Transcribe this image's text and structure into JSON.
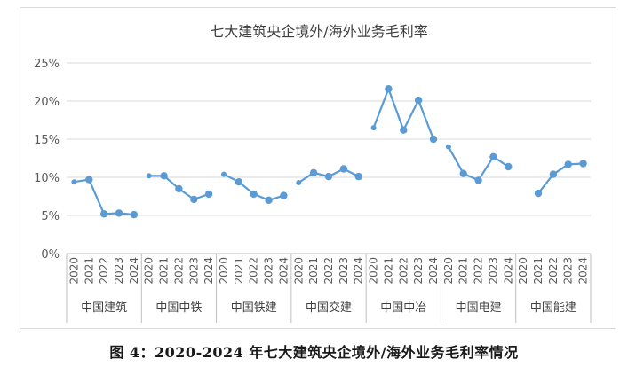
{
  "caption": "图 4：2020-2024 年七大建筑央企境外/海外业务毛利率情况",
  "chart_data": {
    "type": "line",
    "title": "七大建筑央企境外/海外业务毛利率",
    "xlabel": "",
    "ylabel": "",
    "ylim": [
      0,
      25
    ],
    "y_ticks": [
      "0%",
      "5%",
      "10%",
      "15%",
      "20%",
      "25%"
    ],
    "years": [
      "2020",
      "2021",
      "2022",
      "2023",
      "2024"
    ],
    "grid": true,
    "legend": "none",
    "line_color": "#5b9bd5",
    "groups": [
      {
        "name": "中国建筑",
        "values": [
          9.4,
          9.7,
          5.2,
          5.3,
          5.1
        ]
      },
      {
        "name": "中国中铁",
        "values": [
          10.2,
          10.2,
          8.5,
          7.1,
          7.8
        ]
      },
      {
        "name": "中国铁建",
        "values": [
          10.4,
          9.4,
          7.8,
          7.0,
          7.6
        ]
      },
      {
        "name": "中国交建",
        "values": [
          9.3,
          10.6,
          10.1,
          11.1,
          10.1
        ]
      },
      {
        "name": "中国中冶",
        "values": [
          16.5,
          21.6,
          16.2,
          20.1,
          15.0
        ]
      },
      {
        "name": "中国电建",
        "values": [
          14.0,
          10.5,
          9.6,
          12.7,
          11.4
        ]
      },
      {
        "name": "中国能建",
        "values": [
          null,
          7.9,
          10.4,
          11.7,
          11.8
        ]
      }
    ]
  }
}
